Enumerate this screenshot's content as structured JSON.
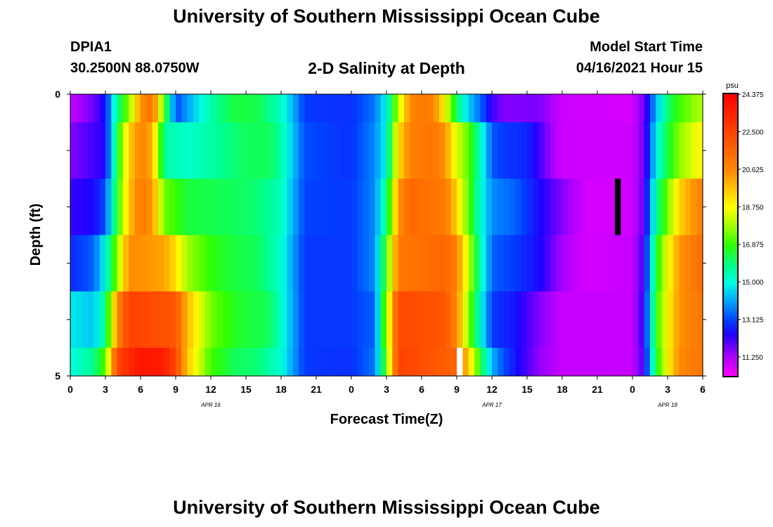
{
  "header": {
    "title": "University of Southern Mississippi Ocean Cube",
    "station_id": "DPIA1",
    "station_coords": "30.2500N  88.0750W",
    "subtitle": "2-D Salinity at Depth",
    "model_start_label": "Model Start Time",
    "model_start_value": "04/16/2021 Hour 15"
  },
  "footer": {
    "title": "University of Southern Mississippi Ocean Cube"
  },
  "chart_data": {
    "type": "heatmap",
    "title": "2-D Salinity at Depth",
    "xlabel": "Forecast Time(Z)",
    "ylabel": "Depth (ft)",
    "x_unit": "forecast hours from 00Z Apr 16",
    "xlim": [
      0,
      54
    ],
    "ylim": [
      0,
      5
    ],
    "x_ticks": [
      0,
      3,
      6,
      9,
      12,
      15,
      18,
      21,
      24,
      27,
      30,
      33,
      36,
      39,
      42,
      45,
      48,
      51,
      54
    ],
    "x_tick_labels": [
      "0",
      "3",
      "6",
      "9",
      "12",
      "15",
      "18",
      "21",
      "0",
      "3",
      "6",
      "9",
      "12",
      "15",
      "18",
      "21",
      "0",
      "3",
      "6"
    ],
    "date_labels": [
      {
        "text": "APR 16",
        "hour": 12
      },
      {
        "text": "APR 17",
        "hour": 36
      },
      {
        "text": "APR 18",
        "hour": 51
      }
    ],
    "y_ticks": [
      0,
      1,
      2,
      3,
      4,
      5
    ],
    "y_tick_labels": [
      "0",
      "",
      "",
      "",
      "",
      "5"
    ],
    "layers": [
      {
        "depth_top": 0,
        "depth_bottom": 0.5
      },
      {
        "depth_top": 0.5,
        "depth_bottom": 1.5
      },
      {
        "depth_top": 1.5,
        "depth_bottom": 2.5
      },
      {
        "depth_top": 2.5,
        "depth_bottom": 3.5
      },
      {
        "depth_top": 3.5,
        "depth_bottom": 4.5
      },
      {
        "depth_top": 4.5,
        "depth_bottom": 5
      }
    ],
    "salinity_keypoints": [
      [
        [
          0,
          11.0
        ],
        [
          2,
          11.8
        ],
        [
          3,
          12.6
        ],
        [
          4,
          15.8
        ],
        [
          5,
          17.6
        ],
        [
          6,
          20.4
        ],
        [
          7,
          21.3
        ],
        [
          8,
          17.2
        ],
        [
          9,
          13.1
        ],
        [
          10,
          14.0
        ],
        [
          12,
          15.6
        ],
        [
          14,
          16.4
        ],
        [
          16,
          16.3
        ],
        [
          18,
          15.3
        ],
        [
          19,
          14.2
        ],
        [
          20,
          13.0
        ],
        [
          24,
          12.9
        ],
        [
          26,
          13.6
        ],
        [
          27,
          15.0
        ],
        [
          28,
          18.0
        ],
        [
          29,
          20.6
        ],
        [
          30,
          21.0
        ],
        [
          31,
          20.8
        ],
        [
          32,
          18.8
        ],
        [
          33,
          16.0
        ],
        [
          34,
          14.5
        ],
        [
          35,
          13.5
        ],
        [
          36,
          12.2
        ],
        [
          37,
          11.6
        ],
        [
          40,
          11.7
        ],
        [
          41,
          11.3
        ],
        [
          42,
          10.9
        ],
        [
          48,
          10.8
        ],
        [
          49,
          11.8
        ],
        [
          50,
          14.2
        ],
        [
          51,
          16.0
        ],
        [
          52,
          17.0
        ],
        [
          54,
          18.0
        ]
      ],
      [
        [
          0,
          11.6
        ],
        [
          3,
          12.4
        ],
        [
          4,
          16.4
        ],
        [
          5,
          19.4
        ],
        [
          6,
          20.8
        ],
        [
          7,
          20.0
        ],
        [
          8,
          15.6
        ],
        [
          10,
          15.2
        ],
        [
          13,
          15.8
        ],
        [
          15,
          16.2
        ],
        [
          17,
          16.2
        ],
        [
          18,
          15.6
        ],
        [
          19,
          14.4
        ],
        [
          20,
          13.2
        ],
        [
          24,
          12.9
        ],
        [
          26,
          13.8
        ],
        [
          27,
          15.0
        ],
        [
          28,
          19.2
        ],
        [
          29,
          20.8
        ],
        [
          31,
          21.2
        ],
        [
          32,
          20.4
        ],
        [
          33,
          18.4
        ],
        [
          34,
          17.2
        ],
        [
          35,
          15.4
        ],
        [
          36,
          13.3
        ],
        [
          37,
          13.0
        ],
        [
          39,
          12.8
        ],
        [
          40,
          12.2
        ],
        [
          41,
          11.4
        ],
        [
          42,
          10.9
        ],
        [
          48,
          10.9
        ],
        [
          49,
          11.8
        ],
        [
          50,
          14.8
        ],
        [
          51,
          16.4
        ],
        [
          52,
          17.6
        ],
        [
          54,
          19.0
        ]
      ],
      [
        [
          0,
          12.2
        ],
        [
          2,
          12.5
        ],
        [
          3,
          13.2
        ],
        [
          4,
          16.6
        ],
        [
          5,
          19.6
        ],
        [
          6,
          21.0
        ],
        [
          7,
          20.4
        ],
        [
          8,
          17.4
        ],
        [
          10,
          16.4
        ],
        [
          14,
          16.2
        ],
        [
          16,
          16.0
        ],
        [
          18,
          15.4
        ],
        [
          19,
          14.2
        ],
        [
          20,
          13.1
        ],
        [
          24,
          13.0
        ],
        [
          26,
          13.8
        ],
        [
          27,
          15.8
        ],
        [
          28,
          20.4
        ],
        [
          29,
          21.5
        ],
        [
          32,
          21.0
        ],
        [
          33,
          19.4
        ],
        [
          34,
          17.2
        ],
        [
          35,
          15.2
        ],
        [
          36,
          13.8
        ],
        [
          38,
          13.4
        ],
        [
          40,
          12.5
        ],
        [
          42,
          11.6
        ],
        [
          44,
          10.8
        ],
        [
          48,
          10.9
        ],
        [
          49,
          11.9
        ],
        [
          50,
          15.6
        ],
        [
          51,
          17.4
        ],
        [
          52,
          19.4
        ],
        [
          54,
          21.0
        ]
      ],
      [
        [
          0,
          12.8
        ],
        [
          2,
          13.4
        ],
        [
          3,
          15.0
        ],
        [
          4,
          17.6
        ],
        [
          5,
          20.6
        ],
        [
          8,
          20.2
        ],
        [
          9,
          19.2
        ],
        [
          10,
          17.8
        ],
        [
          12,
          16.8
        ],
        [
          14,
          16.4
        ],
        [
          16,
          16.2
        ],
        [
          18,
          15.2
        ],
        [
          19,
          14.0
        ],
        [
          20,
          13.0
        ],
        [
          24,
          13.0
        ],
        [
          26,
          13.8
        ],
        [
          27,
          17.0
        ],
        [
          28,
          21.0
        ],
        [
          32,
          21.6
        ],
        [
          33,
          20.8
        ],
        [
          34,
          18.2
        ],
        [
          35,
          15.5
        ],
        [
          36,
          13.4
        ],
        [
          38,
          13.0
        ],
        [
          40,
          12.5
        ],
        [
          42,
          11.3
        ],
        [
          44,
          10.8
        ],
        [
          48,
          11.0
        ],
        [
          49,
          12.2
        ],
        [
          50,
          16.4
        ],
        [
          51,
          18.6
        ],
        [
          52,
          20.4
        ],
        [
          54,
          21.4
        ]
      ],
      [
        [
          0,
          14.8
        ],
        [
          2,
          14.4
        ],
        [
          3,
          15.8
        ],
        [
          4,
          20.6
        ],
        [
          5,
          22.6
        ],
        [
          9,
          22.0
        ],
        [
          10,
          19.8
        ],
        [
          12,
          17.4
        ],
        [
          14,
          16.6
        ],
        [
          17,
          16.2
        ],
        [
          18,
          15.2
        ],
        [
          19,
          14.1
        ],
        [
          20,
          13.0
        ],
        [
          24,
          13.0
        ],
        [
          26,
          13.4
        ],
        [
          27,
          17.8
        ],
        [
          28,
          22.4
        ],
        [
          32,
          22.0
        ],
        [
          33,
          20.6
        ],
        [
          34,
          17.6
        ],
        [
          35,
          15.2
        ],
        [
          36,
          13.0
        ],
        [
          38,
          12.6
        ],
        [
          40,
          11.6
        ],
        [
          42,
          11.0
        ],
        [
          48,
          11.0
        ],
        [
          49,
          12.4
        ],
        [
          50,
          16.8
        ],
        [
          51,
          18.8
        ],
        [
          52,
          20.4
        ],
        [
          54,
          21.2
        ]
      ],
      [
        [
          0,
          15.0
        ],
        [
          2,
          15.8
        ],
        [
          3,
          17.2
        ],
        [
          4,
          22.4
        ],
        [
          5,
          23.2
        ],
        [
          6,
          23.8
        ],
        [
          8,
          23.6
        ],
        [
          9,
          22.4
        ],
        [
          10,
          19.6
        ],
        [
          12,
          17.0
        ],
        [
          14,
          16.2
        ],
        [
          16,
          16.0
        ],
        [
          18,
          15.1
        ],
        [
          19,
          14.0
        ],
        [
          20,
          13.0
        ],
        [
          24,
          12.9
        ],
        [
          26,
          13.6
        ],
        [
          27,
          17.2
        ],
        [
          28,
          22.6
        ],
        [
          31,
          22.0
        ],
        [
          33,
          21.6
        ],
        [
          34,
          19.6
        ],
        [
          35,
          16.6
        ],
        [
          36,
          14.2
        ],
        [
          37,
          13.2
        ],
        [
          38,
          12.6
        ],
        [
          40,
          11.5
        ],
        [
          42,
          11.0
        ],
        [
          48,
          11.0
        ],
        [
          49,
          12.2
        ],
        [
          50,
          16.4
        ],
        [
          51,
          18.8
        ],
        [
          52,
          20.6
        ],
        [
          54,
          21.2
        ]
      ]
    ],
    "marks": [
      {
        "name": "missing-data-bar",
        "color": "#000000",
        "hour_start": 46.5,
        "hour_end": 47,
        "depth_top": 1.5,
        "depth_bottom": 2.5
      },
      {
        "name": "missing-data-bar",
        "color": "#ffffff",
        "hour_start": 33,
        "hour_end": 33.5,
        "depth_top": 4.5,
        "depth_bottom": 5
      }
    ],
    "colorbar": {
      "unit": "psu",
      "min": 10.3,
      "max": 24.375,
      "ticks": [
        24.375,
        22.5,
        20.625,
        18.75,
        16.875,
        15.0,
        13.125,
        11.25
      ],
      "tick_labels": [
        "24.375",
        "22.500",
        "20.625",
        "18.750",
        "16.875",
        "15.000",
        "13.125",
        "11.250"
      ],
      "color_stops": [
        {
          "value": 10.3,
          "color": "#ff00ff"
        },
        {
          "value": 11.25,
          "color": "#b000ff"
        },
        {
          "value": 12.4,
          "color": "#2000ff"
        },
        {
          "value": 13.125,
          "color": "#0044ff"
        },
        {
          "value": 14.0,
          "color": "#00a0ff"
        },
        {
          "value": 15.0,
          "color": "#00ffe0"
        },
        {
          "value": 15.8,
          "color": "#00ff90"
        },
        {
          "value": 16.875,
          "color": "#30ff00"
        },
        {
          "value": 17.8,
          "color": "#a0ff00"
        },
        {
          "value": 18.75,
          "color": "#ffff00"
        },
        {
          "value": 19.7,
          "color": "#ffc000"
        },
        {
          "value": 20.625,
          "color": "#ff8800"
        },
        {
          "value": 22.5,
          "color": "#ff4400"
        },
        {
          "value": 24.375,
          "color": "#ff0000"
        }
      ]
    }
  }
}
